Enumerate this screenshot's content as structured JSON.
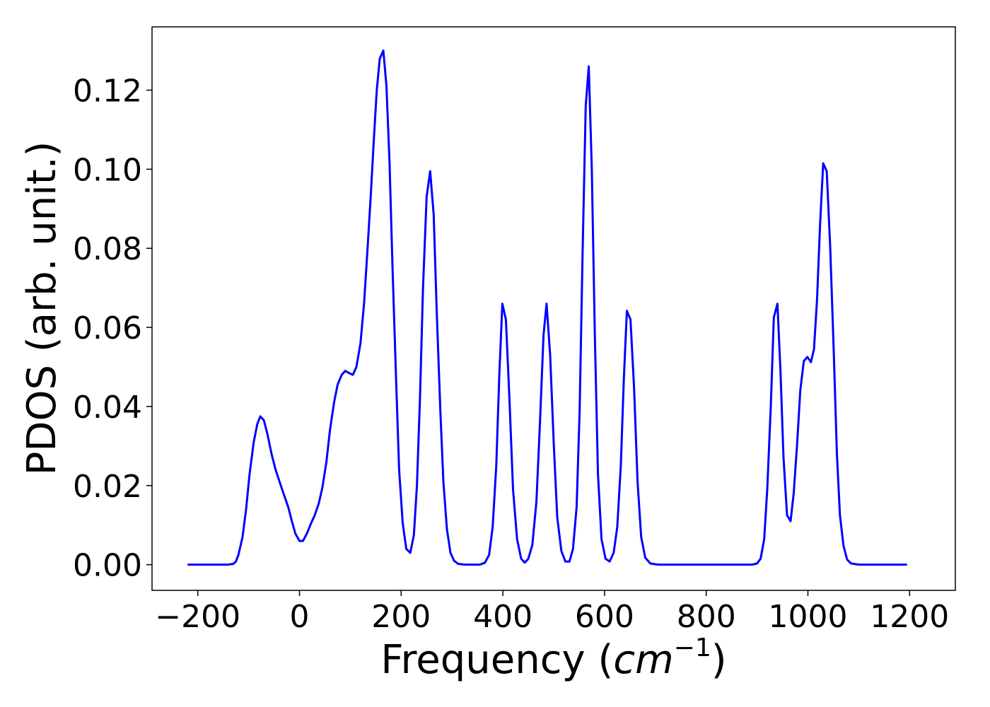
{
  "chart_data": {
    "type": "line",
    "title": "",
    "xlabel_text": "Frequency (",
    "xlabel_unit_base": "cm",
    "xlabel_unit_exp": "−1",
    "xlabel_close": ")",
    "ylabel": "PDOS (arb. unit.)",
    "xlim": [
      -290,
      1290
    ],
    "ylim": [
      -0.0065,
      0.136
    ],
    "xticks": [
      -200,
      0,
      200,
      400,
      600,
      800,
      1000,
      1200
    ],
    "xtick_labels": [
      "−200",
      "0",
      "200",
      "400",
      "600",
      "800",
      "1000",
      "1200"
    ],
    "yticks": [
      0.0,
      0.02,
      0.04,
      0.06,
      0.08,
      0.1,
      0.12
    ],
    "ytick_labels": [
      "0.00",
      "0.02",
      "0.04",
      "0.06",
      "0.08",
      "0.10",
      "0.12"
    ],
    "grid": false,
    "series": [
      {
        "color": "#0000ff",
        "points": [
          [
            -220,
            0.0
          ],
          [
            -200,
            0.0
          ],
          [
            -180,
            0.0
          ],
          [
            -160,
            0.0
          ],
          [
            -140,
            0.0
          ],
          [
            -130,
            0.0002
          ],
          [
            -125,
            0.0008
          ],
          [
            -120,
            0.0025
          ],
          [
            -112,
            0.007
          ],
          [
            -105,
            0.014
          ],
          [
            -98,
            0.023
          ],
          [
            -90,
            0.031
          ],
          [
            -83,
            0.0355
          ],
          [
            -77,
            0.0375
          ],
          [
            -70,
            0.0365
          ],
          [
            -63,
            0.033
          ],
          [
            -55,
            0.028
          ],
          [
            -47,
            0.024
          ],
          [
            -38,
            0.0205
          ],
          [
            -30,
            0.0175
          ],
          [
            -22,
            0.0145
          ],
          [
            -15,
            0.011
          ],
          [
            -8,
            0.0078
          ],
          [
            0,
            0.006
          ],
          [
            7,
            0.006
          ],
          [
            15,
            0.008
          ],
          [
            23,
            0.0105
          ],
          [
            30,
            0.0125
          ],
          [
            38,
            0.0155
          ],
          [
            45,
            0.0195
          ],
          [
            53,
            0.026
          ],
          [
            60,
            0.034
          ],
          [
            68,
            0.041
          ],
          [
            75,
            0.0455
          ],
          [
            83,
            0.048
          ],
          [
            90,
            0.049
          ],
          [
            97,
            0.0485
          ],
          [
            105,
            0.048
          ],
          [
            112,
            0.05
          ],
          [
            120,
            0.056
          ],
          [
            127,
            0.066
          ],
          [
            133,
            0.078
          ],
          [
            140,
            0.093
          ],
          [
            146,
            0.107
          ],
          [
            152,
            0.12
          ],
          [
            158,
            0.128
          ],
          [
            165,
            0.13
          ],
          [
            171,
            0.121
          ],
          [
            177,
            0.102
          ],
          [
            183,
            0.075
          ],
          [
            190,
            0.047
          ],
          [
            196,
            0.024
          ],
          [
            203,
            0.0105
          ],
          [
            210,
            0.004
          ],
          [
            218,
            0.003
          ],
          [
            225,
            0.0075
          ],
          [
            231,
            0.02
          ],
          [
            237,
            0.042
          ],
          [
            243,
            0.07
          ],
          [
            250,
            0.093
          ],
          [
            257,
            0.0995
          ],
          [
            264,
            0.0885
          ],
          [
            270,
            0.064
          ],
          [
            277,
            0.039
          ],
          [
            283,
            0.021
          ],
          [
            290,
            0.009
          ],
          [
            297,
            0.003
          ],
          [
            304,
            0.001
          ],
          [
            312,
            0.0002
          ],
          [
            325,
            0.0
          ],
          [
            340,
            0.0
          ],
          [
            355,
            0.0
          ],
          [
            365,
            0.0005
          ],
          [
            373,
            0.0025
          ],
          [
            380,
            0.0095
          ],
          [
            387,
            0.025
          ],
          [
            393,
            0.048
          ],
          [
            399,
            0.066
          ],
          [
            406,
            0.062
          ],
          [
            413,
            0.042
          ],
          [
            420,
            0.019
          ],
          [
            428,
            0.0065
          ],
          [
            436,
            0.0015
          ],
          [
            443,
            0.0005
          ],
          [
            450,
            0.0015
          ],
          [
            458,
            0.005
          ],
          [
            466,
            0.016
          ],
          [
            473,
            0.036
          ],
          [
            480,
            0.058
          ],
          [
            486,
            0.066
          ],
          [
            493,
            0.053
          ],
          [
            500,
            0.031
          ],
          [
            507,
            0.012
          ],
          [
            515,
            0.0035
          ],
          [
            523,
            0.0008
          ],
          [
            531,
            0.0008
          ],
          [
            538,
            0.004
          ],
          [
            545,
            0.0145
          ],
          [
            551,
            0.039
          ],
          [
            557,
            0.08
          ],
          [
            563,
            0.116
          ],
          [
            569,
            0.126
          ],
          [
            575,
            0.1
          ],
          [
            581,
            0.058
          ],
          [
            587,
            0.023
          ],
          [
            594,
            0.0065
          ],
          [
            602,
            0.0015
          ],
          [
            610,
            0.0008
          ],
          [
            618,
            0.003
          ],
          [
            625,
            0.0095
          ],
          [
            632,
            0.025
          ],
          [
            638,
            0.047
          ],
          [
            644,
            0.0642
          ],
          [
            651,
            0.062
          ],
          [
            658,
            0.045
          ],
          [
            665,
            0.021
          ],
          [
            672,
            0.007
          ],
          [
            680,
            0.0018
          ],
          [
            690,
            0.0003
          ],
          [
            705,
            0.0
          ],
          [
            750,
            0.0
          ],
          [
            800,
            0.0
          ],
          [
            850,
            0.0
          ],
          [
            890,
            0.0
          ],
          [
            900,
            0.0003
          ],
          [
            907,
            0.0015
          ],
          [
            914,
            0.0065
          ],
          [
            920,
            0.019
          ],
          [
            927,
            0.04
          ],
          [
            933,
            0.0625
          ],
          [
            940,
            0.066
          ],
          [
            946,
            0.049
          ],
          [
            952,
            0.027
          ],
          [
            959,
            0.0125
          ],
          [
            966,
            0.011
          ],
          [
            972,
            0.018
          ],
          [
            979,
            0.031
          ],
          [
            985,
            0.044
          ],
          [
            992,
            0.0515
          ],
          [
            999,
            0.0525
          ],
          [
            1006,
            0.0512
          ],
          [
            1012,
            0.0545
          ],
          [
            1018,
            0.067
          ],
          [
            1024,
            0.086
          ],
          [
            1030,
            0.1015
          ],
          [
            1037,
            0.0995
          ],
          [
            1044,
            0.08
          ],
          [
            1051,
            0.053
          ],
          [
            1057,
            0.028
          ],
          [
            1063,
            0.0125
          ],
          [
            1070,
            0.0048
          ],
          [
            1077,
            0.0013
          ],
          [
            1085,
            0.0003
          ],
          [
            1100,
            0.0
          ],
          [
            1150,
            0.0
          ],
          [
            1195,
            0.0
          ]
        ]
      }
    ]
  }
}
